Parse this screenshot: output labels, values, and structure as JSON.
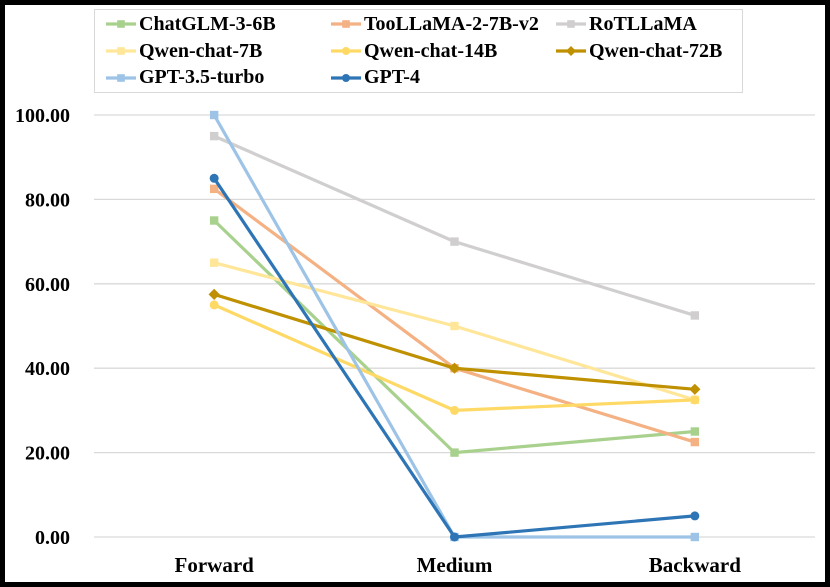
{
  "figure": {
    "background": "#FFFFFF",
    "frame_border_color": "#000000",
    "legend_border_color": "#D9D9D9",
    "gridline_color": "#D9D9D9",
    "text_color": "#000000",
    "legend_position": "top"
  },
  "chart_data": {
    "type": "line",
    "title": "",
    "xlabel": "",
    "ylabel": "",
    "grid": true,
    "ylim": [
      0,
      100
    ],
    "y_ticks": [
      "100.00",
      "80.00",
      "60.00",
      "40.00",
      "20.00",
      "0.00"
    ],
    "categories": [
      "Forward",
      "Medium",
      "Backward"
    ],
    "series": [
      {
        "name": "ChatGLM-3-6B",
        "values": [
          75,
          20,
          25
        ],
        "color": "#A9D18E",
        "marker": "square"
      },
      {
        "name": "TooLLaMA-2-7B-v2",
        "values": [
          82.5,
          40,
          22.5
        ],
        "color": "#F4B183",
        "marker": "square"
      },
      {
        "name": "RoTLLaMA",
        "values": [
          95,
          70,
          52.5
        ],
        "color": "#D0CECE",
        "marker": "square"
      },
      {
        "name": "Qwen-chat-7B",
        "values": [
          65,
          50,
          32.5
        ],
        "color": "#FFE699",
        "marker": "square"
      },
      {
        "name": "Qwen-chat-14B",
        "values": [
          55,
          30,
          32.5
        ],
        "color": "#FFD966",
        "marker": "circle"
      },
      {
        "name": "Qwen-chat-72B",
        "values": [
          57.5,
          40,
          35
        ],
        "color": "#BF9000",
        "marker": "diamond"
      },
      {
        "name": "GPT-3.5-turbo",
        "values": [
          100,
          0,
          0
        ],
        "color": "#9DC3E6",
        "marker": "square"
      },
      {
        "name": "GPT-4",
        "values": [
          85,
          0,
          5
        ],
        "color": "#2E75B6",
        "marker": "circle"
      }
    ]
  }
}
